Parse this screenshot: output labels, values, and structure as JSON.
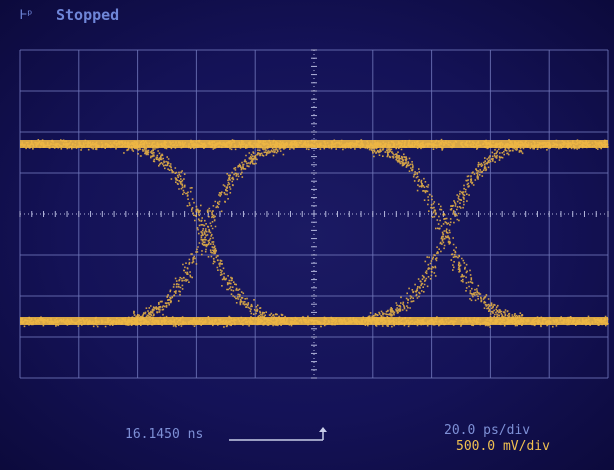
{
  "status": {
    "indicator_icon": "acquisition-indicator-icon",
    "state_text": "Stopped"
  },
  "graticule": {
    "horizontal_divisions": 10,
    "vertical_divisions": 8,
    "grid_color": "#6e74b8",
    "center_axis_color": "#b3b6dc"
  },
  "trace": {
    "color": "#f0b844",
    "pattern": "eye-diagram",
    "crossings": 2
  },
  "readouts": {
    "time_position": "16.1450 ns",
    "timebase": "20.0 ps/div",
    "vertical_scale": "500.0 mV/div"
  },
  "colors": {
    "screen_background": "#141257",
    "readout_text": "#7e90d6",
    "channel_text": "#f0c050"
  }
}
